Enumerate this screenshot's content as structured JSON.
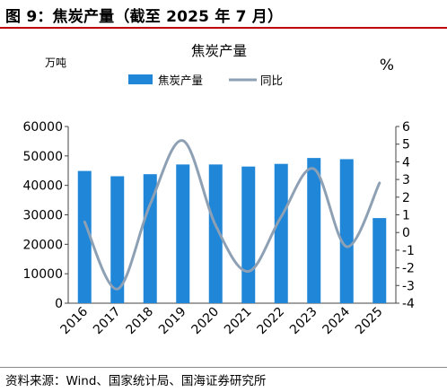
{
  "figure": {
    "title": "图 9：焦炭产量（截至 2025 年 7 月）",
    "source": "资料来源：Wind、国家统计局、国海证券研究所"
  },
  "chart_data": {
    "type": "bar",
    "title": "焦炭产量",
    "left_unit": "万吨",
    "right_unit": "%",
    "categories": [
      "2016",
      "2017",
      "2018",
      "2019",
      "2020",
      "2021",
      "2022",
      "2023",
      "2024",
      "2025"
    ],
    "series": [
      {
        "name": "焦炭产量",
        "kind": "bar",
        "axis": "left",
        "color": "#1f86d8",
        "values": [
          44900,
          43100,
          43800,
          47100,
          47100,
          46400,
          47300,
          49300,
          48900,
          28900
        ]
      },
      {
        "name": "同比",
        "kind": "line",
        "axis": "right",
        "color": "#8ea0b4",
        "values": [
          0.6,
          -3.2,
          1.6,
          5.2,
          0.4,
          -2.2,
          0.9,
          3.6,
          -0.8,
          2.8
        ]
      }
    ],
    "y_left": {
      "min": 0,
      "max": 60000,
      "ticks": [
        0,
        10000,
        20000,
        30000,
        40000,
        50000,
        60000
      ]
    },
    "y_right": {
      "min": -4,
      "max": 6,
      "ticks": [
        -4,
        -3,
        -2,
        -1,
        0,
        1,
        2,
        3,
        4,
        5,
        6
      ]
    },
    "legend_position": "top-center",
    "grid": false
  }
}
